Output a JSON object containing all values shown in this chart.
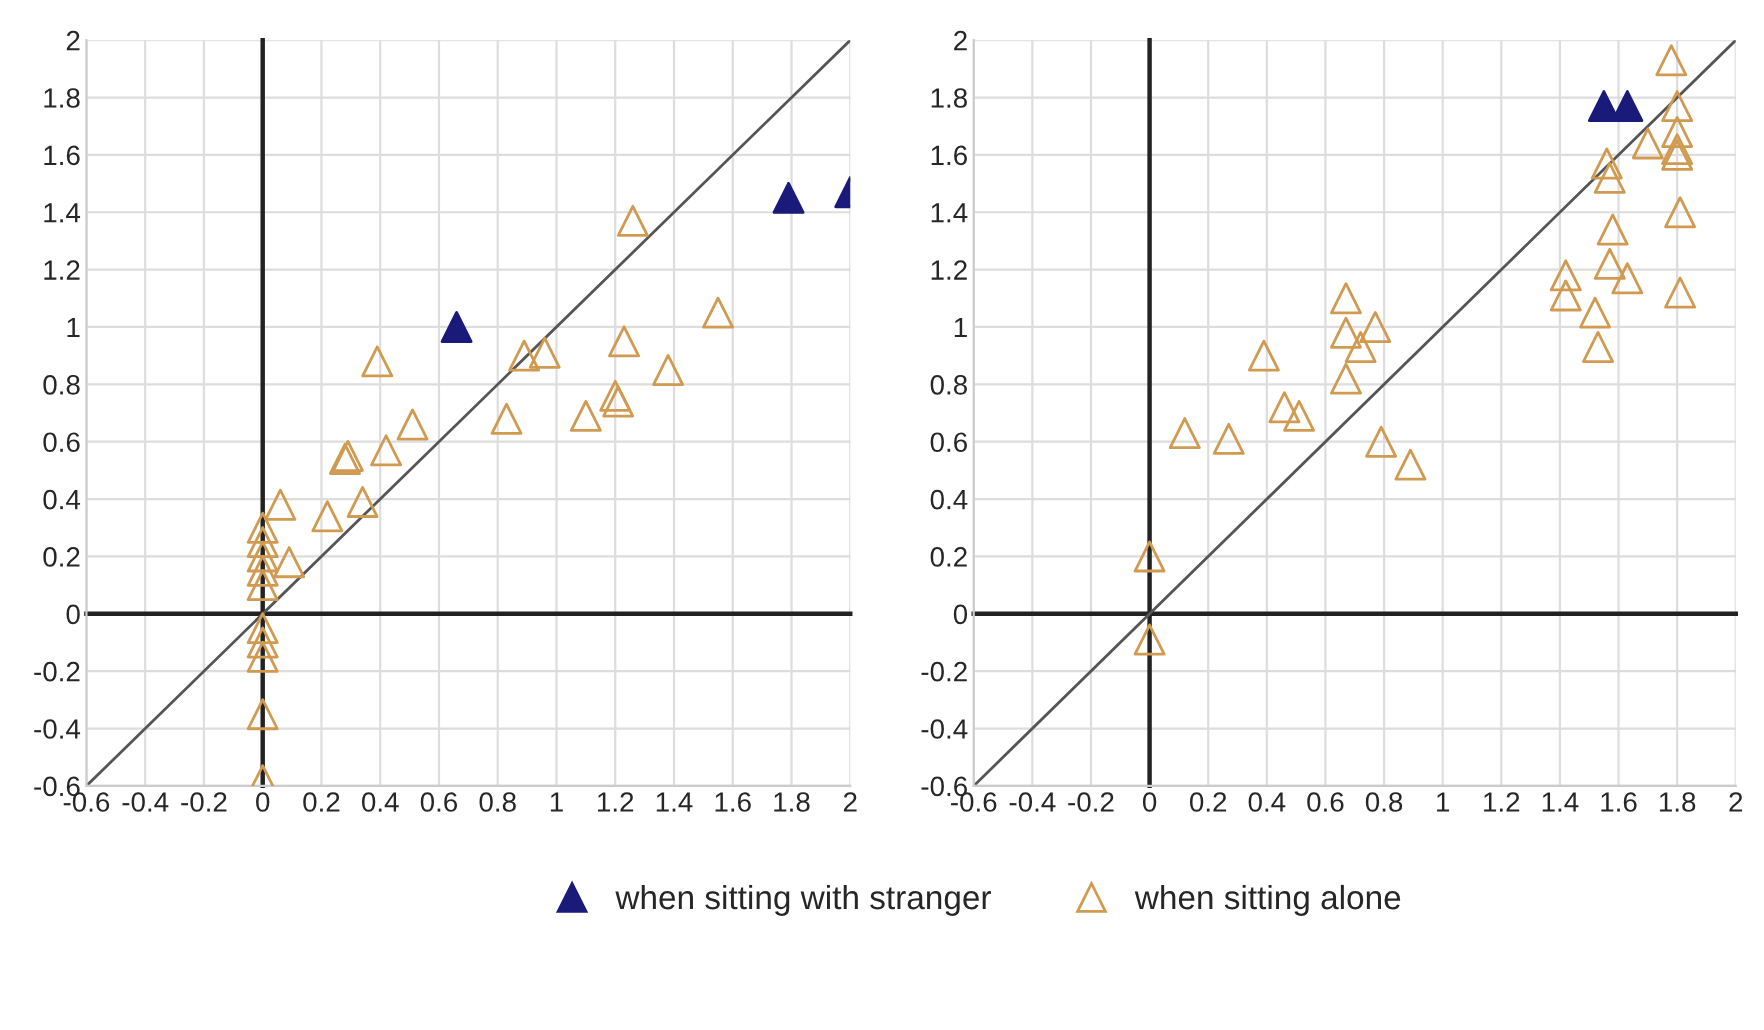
{
  "chart_data": [
    {
      "type": "scatter",
      "xlim": [
        -0.6,
        2
      ],
      "ylim": [
        -0.6,
        2
      ],
      "xticks": [
        -0.6,
        -0.4,
        -0.2,
        0,
        0.2,
        0.4,
        0.6,
        0.8,
        1,
        1.2,
        1.4,
        1.6,
        1.8,
        2
      ],
      "yticks": [
        -0.6,
        -0.4,
        -0.2,
        0,
        0.2,
        0.4,
        0.6,
        0.8,
        1,
        1.2,
        1.4,
        1.6,
        1.8,
        2
      ],
      "grid": true,
      "marker": "triangle",
      "series": [
        {
          "color": "#1a1a7a",
          "x": [
            0.66,
            1.79,
            2.0
          ],
          "values": [
            1.0,
            1.45,
            1.47
          ]
        },
        {
          "color": "#d09a50",
          "x": [
            1.26,
            1.55,
            1.23,
            1.38,
            1.2,
            1.21,
            1.1,
            0.83,
            0.96,
            0.89,
            0.39,
            0.51,
            0.42,
            0.28,
            0.29,
            0.34,
            0.22,
            0.06,
            0.09,
            0,
            0,
            0,
            0,
            0,
            0,
            0,
            0,
            0,
            0
          ],
          "values": [
            1.37,
            1.05,
            0.95,
            0.85,
            0.76,
            0.74,
            0.69,
            0.68,
            0.91,
            0.9,
            0.88,
            0.66,
            0.57,
            0.54,
            0.55,
            0.39,
            0.34,
            0.38,
            0.18,
            0.3,
            0.25,
            0.2,
            0.15,
            0.1,
            -0.05,
            -0.1,
            -0.15,
            -0.35,
            -0.58
          ]
        },
        {
          "type": "line",
          "color": "#555555",
          "marker": "none",
          "x": [
            -0.6,
            2
          ],
          "values": [
            -0.6,
            2
          ]
        }
      ]
    },
    {
      "type": "scatter",
      "xlim": [
        -0.6,
        2
      ],
      "ylim": [
        -0.6,
        2
      ],
      "xticks": [
        -0.6,
        -0.4,
        -0.2,
        0,
        0.2,
        0.4,
        0.6,
        0.8,
        1,
        1.2,
        1.4,
        1.6,
        1.8,
        2
      ],
      "yticks": [
        -0.6,
        -0.4,
        -0.2,
        0,
        0.2,
        0.4,
        0.6,
        0.8,
        1,
        1.2,
        1.4,
        1.6,
        1.8,
        2
      ],
      "grid": true,
      "marker": "triangle",
      "legend": "bottom",
      "series": [
        {
          "name": "when sitting with stranger",
          "color": "#1a1a7a",
          "x": [
            1.55,
            1.63
          ],
          "values": [
            1.77,
            1.77
          ]
        },
        {
          "name": "when sitting alone",
          "color": "#d09a50",
          "x": [
            1.78,
            1.8,
            1.7,
            1.8,
            1.8,
            1.8,
            1.56,
            1.57,
            1.58,
            1.81,
            1.57,
            1.63,
            1.81,
            1.42,
            1.42,
            1.52,
            1.53,
            0.67,
            0.67,
            0.72,
            0.77,
            0.67,
            0.39,
            0.46,
            0.51,
            0.12,
            0.27,
            0.79,
            0.89,
            0,
            0
          ],
          "values": [
            1.93,
            1.77,
            1.64,
            1.68,
            1.62,
            1.6,
            1.57,
            1.52,
            1.34,
            1.4,
            1.22,
            1.17,
            1.12,
            1.18,
            1.11,
            1.05,
            0.93,
            1.1,
            0.98,
            0.93,
            1.0,
            0.82,
            0.9,
            0.72,
            0.69,
            0.63,
            0.61,
            0.6,
            0.52,
            0.2,
            -0.09
          ]
        },
        {
          "type": "line",
          "color": "#555555",
          "marker": "none",
          "x": [
            -0.6,
            2
          ],
          "values": [
            -0.6,
            2
          ]
        }
      ]
    }
  ]
}
